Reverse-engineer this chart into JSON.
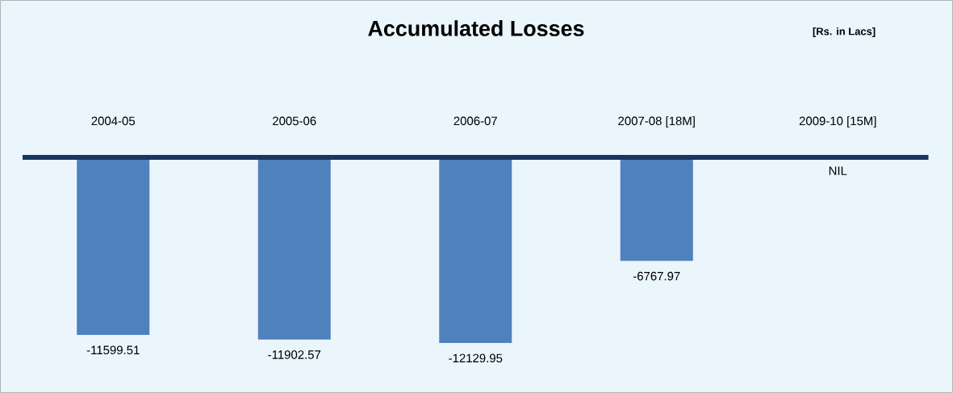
{
  "chart_data": {
    "type": "bar",
    "title": "Accumulated Losses",
    "subtitle": "[Rs. in Lacs]",
    "categories": [
      "2004-05",
      "2005-06",
      "2006-07",
      "2007-08 [18M]",
      "2009-10 [15M]"
    ],
    "values": [
      -11599.51,
      -11902.57,
      -12129.95,
      -6767.97,
      0
    ],
    "value_labels": [
      "-11599.51",
      "-11902.57",
      "-12129.95",
      "-6767.97",
      "NIL"
    ],
    "color": "#4f81bd",
    "tick_labels": "x"
  }
}
